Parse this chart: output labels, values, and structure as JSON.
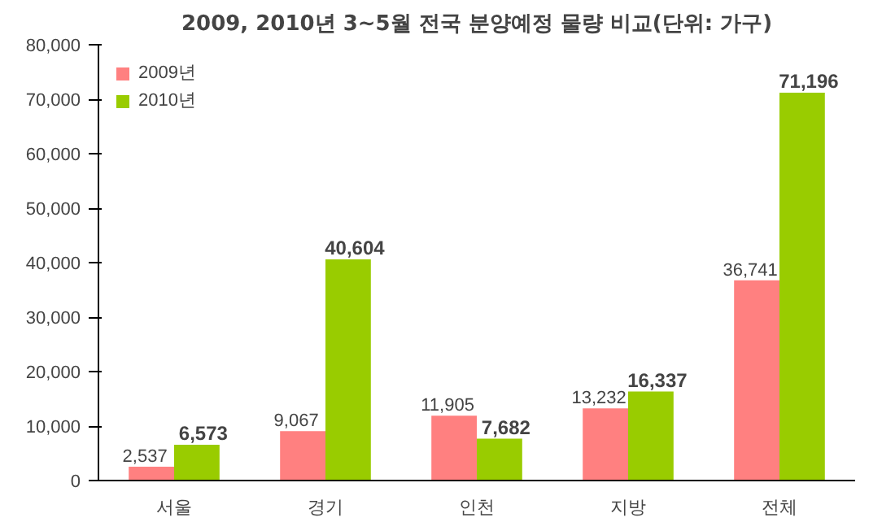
{
  "chart_data": {
    "type": "bar",
    "title": "2009, 2010년 3~5월 전국 분양예정 물량 비교(단위: 가구)",
    "categories": [
      "서울",
      "경기",
      "인천",
      "지방",
      "전체"
    ],
    "series": [
      {
        "name": "2009년",
        "color": "#ff8080",
        "values": [
          2537,
          9067,
          11905,
          13232,
          36741
        ],
        "value_labels": [
          "2,537",
          "9,067",
          "11,905",
          "13,232",
          "36,741"
        ]
      },
      {
        "name": "2010년",
        "color": "#99cc00",
        "values": [
          6573,
          40604,
          7682,
          16337,
          71196
        ],
        "value_labels": [
          "6,573",
          "40,604",
          "7,682",
          "16,337",
          "71,196"
        ]
      }
    ],
    "ylim": [
      0,
      80000
    ],
    "yticks": [
      {
        "value": 0,
        "label": "0"
      },
      {
        "value": 10000,
        "label": "10,000"
      },
      {
        "value": 20000,
        "label": "20,000"
      },
      {
        "value": 30000,
        "label": "30,000"
      },
      {
        "value": 40000,
        "label": "40,000"
      },
      {
        "value": 50000,
        "label": "50,000"
      },
      {
        "value": 60000,
        "label": "60,000"
      },
      {
        "value": 70000,
        "label": "70,000"
      },
      {
        "value": 80000,
        "label": "80,000"
      }
    ],
    "legend": "top left",
    "grid": false
  }
}
